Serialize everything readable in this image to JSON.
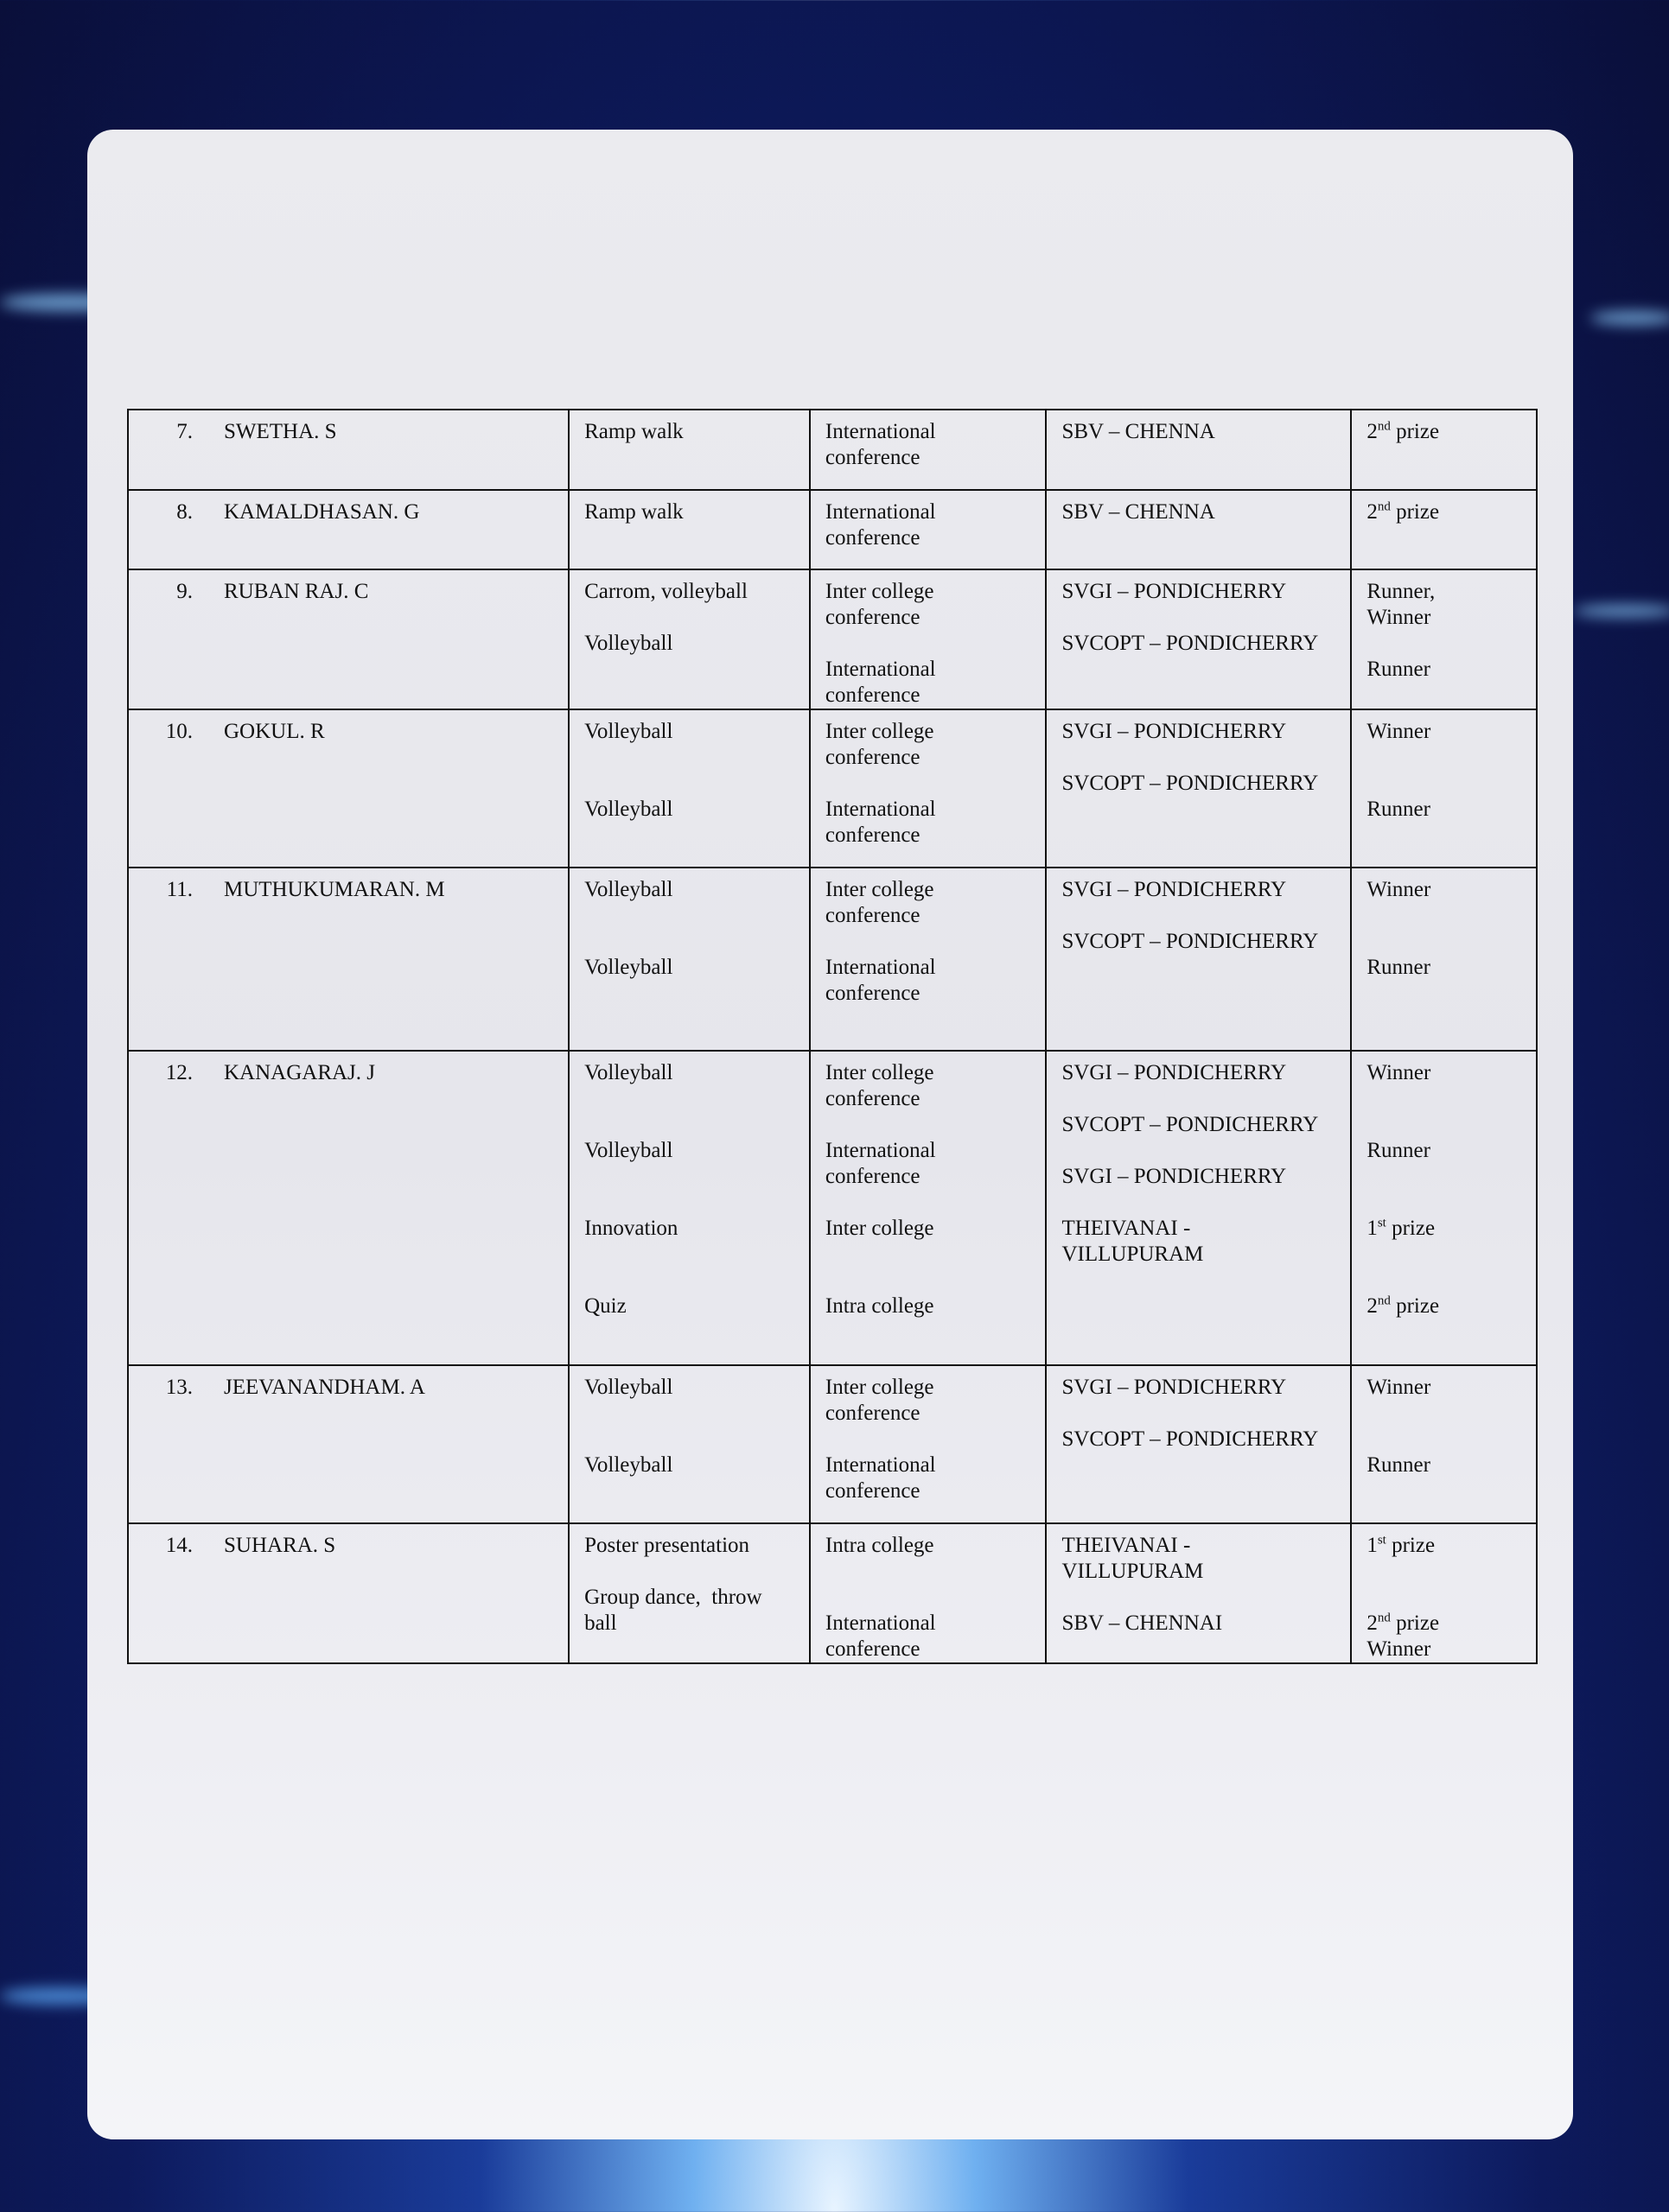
{
  "colors": {
    "background": "#0d1a5c",
    "card": "#ebebef",
    "border": "#111111",
    "text": "#111111"
  },
  "table": {
    "rows": [
      {
        "no": "7.",
        "name": "SWETHA. S",
        "events": [
          "Ramp walk"
        ],
        "levels": [
          "International",
          "conference"
        ],
        "venues": [
          "SBV – CHENNA"
        ],
        "results": [
          "2nd prize"
        ]
      },
      {
        "no": "8.",
        "name": "KAMALDHASAN. G",
        "events": [
          "Ramp walk"
        ],
        "levels": [
          "International",
          "conference"
        ],
        "venues": [
          "SBV – CHENNA"
        ],
        "results": [
          "2nd prize"
        ]
      },
      {
        "no": "9.",
        "name": "RUBAN RAJ. C",
        "events": [
          "Carrom, volleyball",
          "",
          "Volleyball"
        ],
        "levels": [
          "Inter college",
          "conference",
          "",
          "International",
          "conference"
        ],
        "venues": [
          "SVGI – PONDICHERRY",
          "",
          "SVCOPT – PONDICHERRY"
        ],
        "results": [
          "Runner,",
          "Winner",
          "",
          "Runner"
        ]
      },
      {
        "no": "10.",
        "name": "GOKUL. R",
        "events": [
          "Volleyball",
          "",
          "",
          "Volleyball"
        ],
        "levels": [
          "Inter college",
          "conference",
          "",
          "International",
          "conference"
        ],
        "venues": [
          "SVGI – PONDICHERRY",
          "",
          "SVCOPT – PONDICHERRY"
        ],
        "results": [
          "Winner",
          "",
          "",
          "Runner"
        ]
      },
      {
        "no": "11.",
        "name": "MUTHUKUMARAN. M",
        "events": [
          "Volleyball",
          "",
          "",
          "Volleyball"
        ],
        "levels": [
          "Inter college",
          "conference",
          "",
          "International",
          "conference"
        ],
        "venues": [
          "SVGI – PONDICHERRY",
          "",
          "SVCOPT – PONDICHERRY"
        ],
        "results": [
          "Winner",
          "",
          "",
          "Runner"
        ]
      },
      {
        "no": "12.",
        "name": "KANAGARAJ. J",
        "events": [
          "Volleyball",
          "",
          "",
          "Volleyball",
          "",
          "",
          "Innovation",
          "",
          "",
          "Quiz"
        ],
        "levels": [
          "Inter college",
          "conference",
          "",
          "International",
          "conference",
          "",
          "Inter college",
          "",
          "",
          "Intra college"
        ],
        "venues": [
          "SVGI – PONDICHERRY",
          "",
          "SVCOPT – PONDICHERRY",
          "",
          "SVGI – PONDICHERRY",
          "",
          "THEIVANAI -",
          "VILLUPURAM"
        ],
        "results": [
          "Winner",
          "",
          "",
          "Runner",
          "",
          "",
          "1st prize",
          "",
          "",
          "2nd prize"
        ]
      },
      {
        "no": "13.",
        "name": "JEEVANANDHAM. A",
        "events": [
          "Volleyball",
          "",
          "",
          "Volleyball"
        ],
        "levels": [
          "Inter college",
          "conference",
          "",
          "International",
          "conference"
        ],
        "venues": [
          "SVGI – PONDICHERRY",
          "",
          "SVCOPT – PONDICHERRY"
        ],
        "results": [
          "Winner",
          "",
          "",
          "Runner"
        ]
      },
      {
        "no": "14.",
        "name": "SUHARA. S",
        "events": [
          "Poster presentation",
          "",
          "Group dance,  throw",
          "ball"
        ],
        "levels": [
          "Intra college",
          "",
          "",
          "International",
          "conference"
        ],
        "venues": [
          "THEIVANAI -",
          "VILLUPURAM",
          "",
          "SBV – CHENNAI"
        ],
        "results": [
          "1st prize",
          "",
          "",
          "2nd prize",
          "Winner"
        ]
      }
    ]
  }
}
